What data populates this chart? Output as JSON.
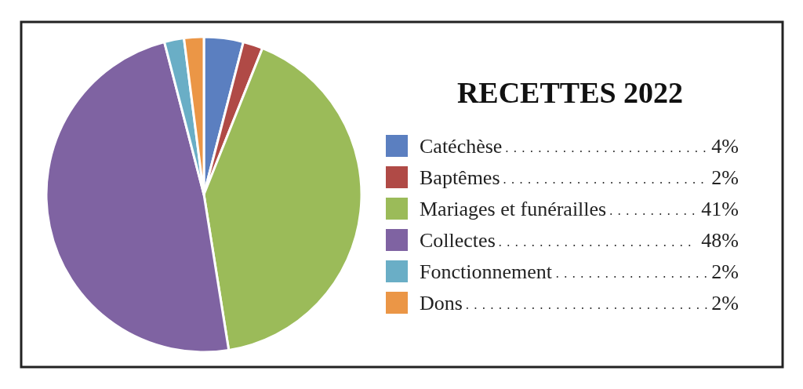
{
  "chart_data": {
    "type": "pie",
    "title": "RECETTES 2022",
    "categories": [
      "Catéchèse",
      "Baptêmes",
      "Mariages et funérailles",
      "Collectes",
      "Fonctionnement",
      "Dons"
    ],
    "values": [
      4,
      2,
      41,
      48,
      2,
      2
    ],
    "colors": [
      "#5b7fc0",
      "#b04a46",
      "#9bbb59",
      "#7f63a2",
      "#6aaec6",
      "#eb9646"
    ],
    "value_labels": [
      "4%",
      "2%",
      "41%",
      "48%",
      "2%",
      "2%"
    ],
    "legend": "right"
  }
}
